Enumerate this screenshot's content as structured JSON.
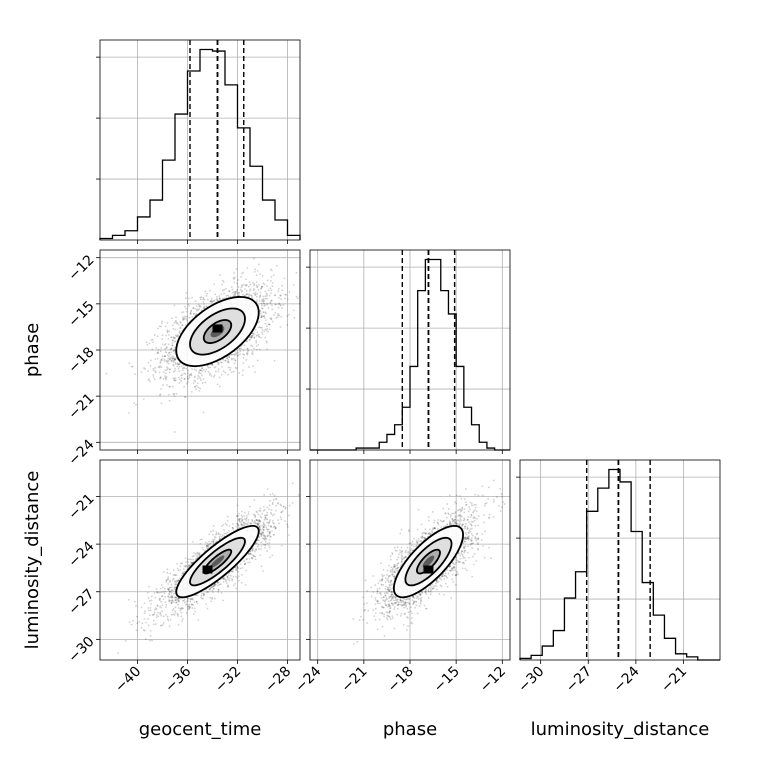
{
  "chart_data": {
    "type": "corner",
    "parameters": [
      "geocent_time",
      "phase",
      "luminosity_distance"
    ],
    "axis_labels": {
      "geocent_time": "geocent_time",
      "phase": "phase",
      "luminosity_distance": "luminosity_distance"
    },
    "ranges": {
      "geocent_time": [
        -43,
        -27
      ],
      "phase": [
        -24.5,
        -11.5
      ],
      "luminosity_distance": [
        -31.3,
        -18.7
      ]
    },
    "ticks": {
      "geocent_time": [
        -40,
        -36,
        -32,
        -28
      ],
      "phase": [
        -24,
        -21,
        -18,
        -15,
        -12
      ],
      "luminosity_distance": [
        -30,
        -27,
        -24,
        -21
      ]
    },
    "grid": true,
    "histograms": {
      "geocent_time": {
        "bin_edges": [
          -43,
          -42,
          -41,
          -40,
          -39,
          -38,
          -37,
          -36,
          -35,
          -34,
          -33,
          -32,
          -31,
          -30,
          -29,
          -28,
          -27
        ],
        "counts": [
          1,
          3,
          6,
          15,
          26,
          52,
          82,
          110,
          124,
          123,
          101,
          73,
          48,
          26,
          13,
          3
        ],
        "quantiles": [
          -35.8,
          -33.6,
          -31.5
        ],
        "quantile_styles": [
          "dashed",
          "dashed-bold",
          "dashed"
        ]
      },
      "phase": {
        "bin_edges": [
          -24.5,
          -24,
          -23.5,
          -23,
          -22.5,
          -22,
          -21.5,
          -21,
          -20.5,
          -20,
          -19.5,
          -19,
          -18.5,
          -18,
          -17.5,
          -17,
          -16.5,
          -16,
          -15.5,
          -15,
          -14.5,
          -14,
          -13.5,
          -13,
          -12.5,
          -12,
          -11.5
        ],
        "counts": [
          0,
          0,
          0,
          0,
          0,
          0,
          1,
          1,
          1,
          4,
          8,
          13,
          22,
          43,
          82,
          98,
          98,
          82,
          70,
          43,
          22,
          13,
          4,
          1,
          0,
          0
        ],
        "quantiles": [
          -18.5,
          -16.8,
          -15.1
        ],
        "quantile_styles": [
          "dashed",
          "dashed-bold",
          "dashed"
        ]
      },
      "luminosity_distance": {
        "bin_edges": [
          -31.3,
          -30.6,
          -29.9,
          -29.2,
          -28.5,
          -27.8,
          -27.1,
          -26.4,
          -25.7,
          -25,
          -24.3,
          -23.6,
          -22.9,
          -22.2,
          -21.5,
          -20.8,
          -20.1,
          -19.4,
          -18.7
        ],
        "counts": [
          1,
          3,
          9,
          19,
          40,
          57,
          96,
          111,
          123,
          115,
          83,
          50,
          29,
          14,
          4,
          2,
          0,
          0
        ],
        "quantiles": [
          -27.1,
          -25.1,
          -23.1
        ],
        "quantile_styles": [
          "dashed",
          "dashed-bold",
          "dashed"
        ]
      }
    },
    "joint": [
      {
        "x": "geocent_time",
        "y": "phase",
        "center": [
          -33.6,
          -16.8
        ],
        "sigma": [
          2.2,
          1.5
        ],
        "correlation": 0.55,
        "mode": [
          -33.6,
          -16.6
        ]
      },
      {
        "x": "geocent_time",
        "y": "luminosity_distance",
        "center": [
          -33.6,
          -25.1
        ],
        "sigma": [
          2.2,
          1.5
        ],
        "correlation": 0.85,
        "mode": [
          -34.4,
          -25.6
        ]
      },
      {
        "x": "phase",
        "y": "luminosity_distance",
        "center": [
          -16.8,
          -25.1
        ],
        "sigma": [
          1.5,
          1.5
        ],
        "correlation": 0.75,
        "mode": [
          -16.8,
          -25.6
        ]
      }
    ],
    "contour_levels": [
      0.5,
      1.0,
      1.5
    ]
  }
}
